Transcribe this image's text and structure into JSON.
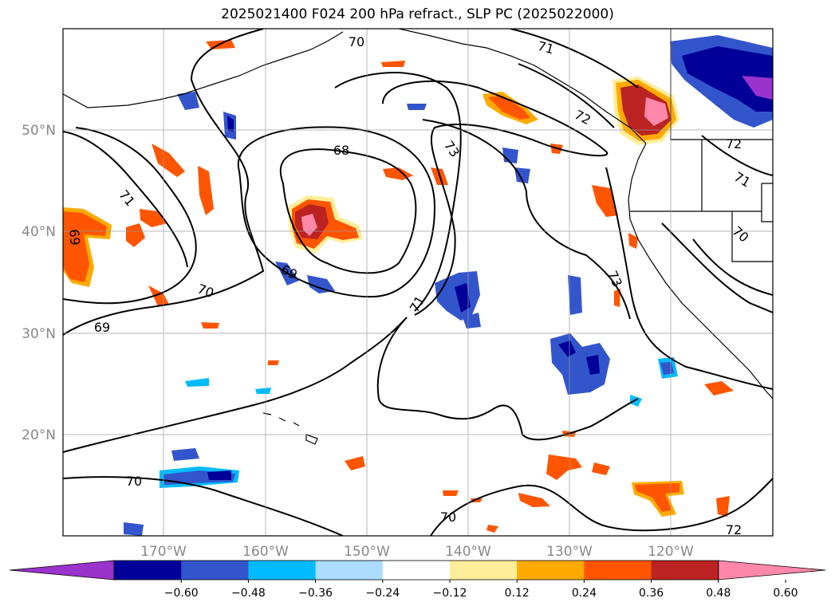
{
  "title": "2025021400 F024 200 hPa refract., SLP PC (2025022000)",
  "lat_labels": [
    "50°N",
    "40°N",
    "30°N",
    "20°N"
  ],
  "lon_labels": [
    "170°W",
    "160°W",
    "150°W",
    "140°W",
    "130°W",
    "120°W"
  ],
  "contour_labels": [
    "70",
    "71",
    "72",
    "73",
    "68",
    "71",
    "69",
    "70",
    "69",
    "72",
    "71",
    "70",
    "73",
    "71",
    "70",
    "70",
    "72",
    "69"
  ],
  "colorbar": {
    "colors": [
      "#9933cc",
      "#000099",
      "#3355cc",
      "#00bbff",
      "#aaddff",
      "#ffffff",
      "#ffee99",
      "#ffaa00",
      "#ff5500",
      "#bb2222",
      "#ff88aa"
    ],
    "tick_labels": [
      "−0.60",
      "−0.48",
      "−0.36",
      "−0.24",
      "−0.12",
      "0.12",
      "0.24",
      "0.36",
      "0.48",
      "0.60"
    ]
  }
}
